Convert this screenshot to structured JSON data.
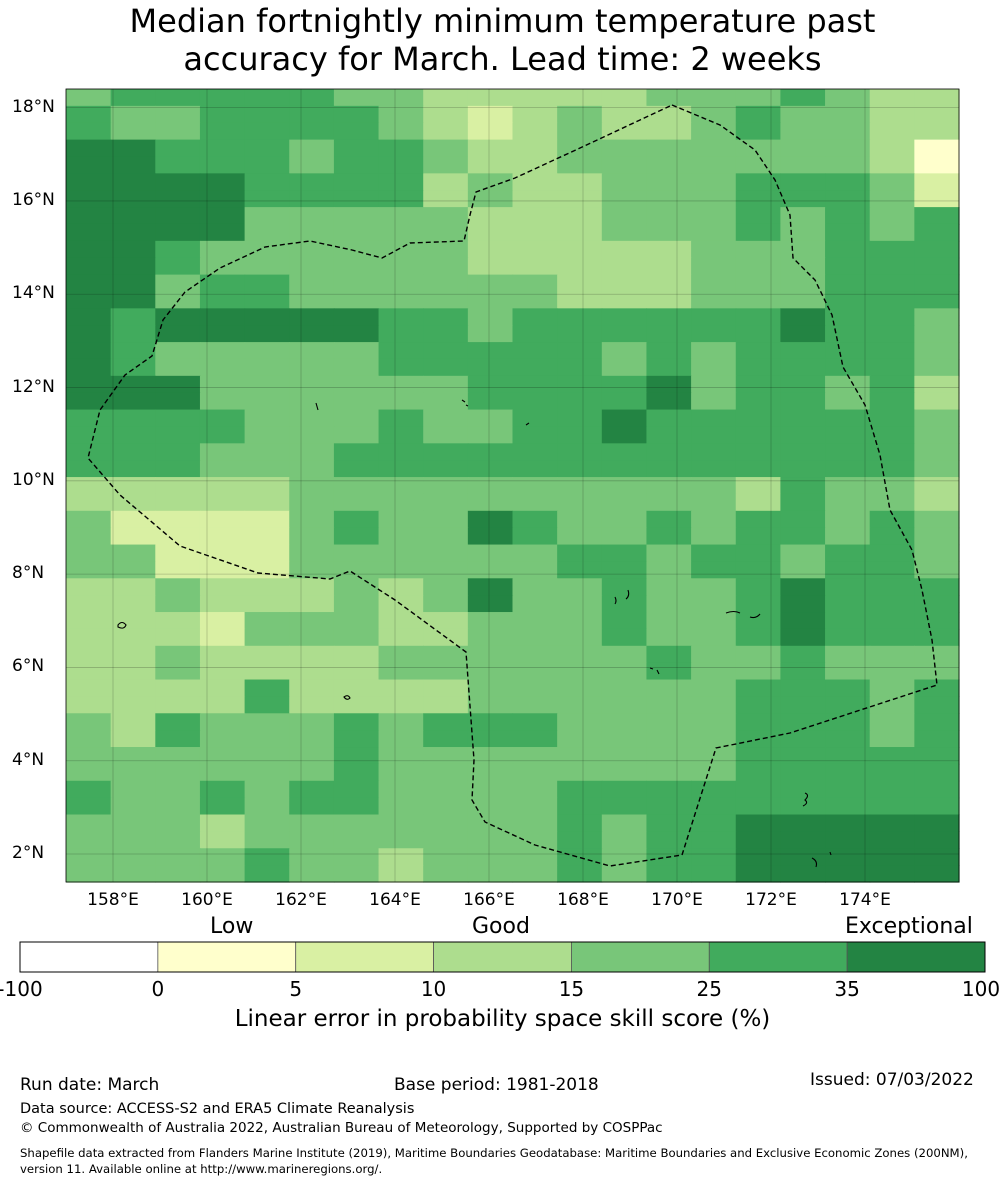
{
  "title_line1": "Median fortnightly minimum temperature past",
  "title_line2": "accuracy for March. Lead time: 2 weeks",
  "map": {
    "lat_labels": [
      "18°N",
      "16°N",
      "14°N",
      "12°N",
      "10°N",
      "8°N",
      "6°N",
      "4°N",
      "2°N"
    ],
    "lon_labels": [
      "158°E",
      "160°E",
      "162°E",
      "164°E",
      "166°E",
      "168°E",
      "170°E",
      "172°E",
      "174°E"
    ],
    "extent": {
      "lon_min": 157.0,
      "lon_max": 176.0,
      "lat_min": 1.4,
      "lat_max": 18.4
    },
    "skill_grid": [
      "45555544333334445433",
      "54455554323433454433",
      "54455554323433454433",
      "66555455433444444431",
      "66555455433444444431",
      "66665555343344455542",
      "66665555343344455542",
      "66664444433344454545",
      "66664444433344454545",
      "66544444433333444555",
      "66544444433333444555",
      "66455444444333444555",
      "66455444444333444555",
      "65666665545555556554",
      "65666665545555556554",
      "65444445555545455554",
      "65444445555545455554",
      "66644444455556455453",
      "66644444455556455453",
      "55554445445565555554",
      "55554445445565555554",
      "55544455555555555554",
      "55544455555555555554",
      "33333444444444435443",
      "33333444444444435443",
      "42222454465445455454",
      "42222454465445455454",
      "44222444444554554554",
      "44222444444554554554",
      "33433343464454456555",
      "33433343464454456555",
      "33324443344454456555",
      "33324443344454456555",
      "33433334444445445444",
      "33433334444445445444",
      "33335333344444455545",
      "33335333344444455545",
      "43544454555444455545",
      "43544454555444455545",
      "44444454444444455555",
      "44444454444444455555",
      "54454554444555555555",
      "54454554444555555555",
      "44434444444545566666",
      "44434444444545566666",
      "44445443444545566666",
      "44445443444545566666"
    ]
  },
  "colorbar": {
    "categories": [
      "Low",
      "Good",
      "Exceptional"
    ],
    "bounds": [
      "-100",
      "0",
      "5",
      "10",
      "15",
      "25",
      "35",
      "100"
    ],
    "colors": [
      "#ffffff",
      "#ffffcc",
      "#d9f0a3",
      "#addd8e",
      "#78c679",
      "#41ab5d",
      "#238443"
    ],
    "label": "Linear error in probability space skill score (%)"
  },
  "footer": {
    "run_date": "Run date: March",
    "base_period": "Base period: 1981-2018",
    "issued": "Issued: 07/03/2022",
    "data_source": "Data source: ACCESS-S2 and ERA5 Climate Reanalysis",
    "copyright": "© Commonwealth of Australia 2022, Australian Bureau of Meteorology, Supported by COSPPac",
    "shapefile_line1": "Shapefile data extracted from Flanders Marine Institute (2019), Maritime Boundaries Geodatabase: Maritime Boundaries and Exclusive Economic Zones (200NM),",
    "shapefile_line2": "version 11. Available online at http://www.marineregions.org/."
  }
}
